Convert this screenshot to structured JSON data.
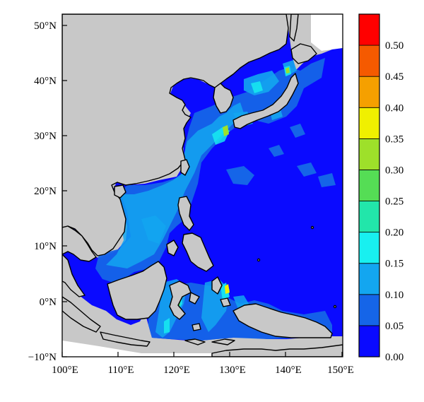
{
  "map": {
    "x_ticks": [
      "100°E",
      "110°E",
      "120°E",
      "130°E",
      "140°E",
      "150°E"
    ],
    "y_ticks": [
      "50°N",
      "40°N",
      "30°N",
      "20°N",
      "10°N",
      "0°N",
      "−10°N"
    ],
    "colors": {
      "land": "#c8c8c8",
      "ocean_base": "#1a1aff",
      "coast": "#000000"
    }
  },
  "colorbar": {
    "labels": [
      "0.00",
      "0.05",
      "0.10",
      "0.15",
      "0.20",
      "0.25",
      "0.30",
      "0.35",
      "0.40",
      "0.45",
      "0.50"
    ],
    "bins": [
      {
        "range": "0.00-0.05",
        "color": "#0a0aff"
      },
      {
        "range": "0.05-0.10",
        "color": "#1565e8"
      },
      {
        "range": "0.10-0.15",
        "color": "#13a6f0"
      },
      {
        "range": "0.15-0.20",
        "color": "#18f0f0"
      },
      {
        "range": "0.20-0.25",
        "color": "#22e6aa"
      },
      {
        "range": "0.25-0.30",
        "color": "#55dd55"
      },
      {
        "range": "0.30-0.35",
        "color": "#9ee02a"
      },
      {
        "range": "0.35-0.40",
        "color": "#f0f000"
      },
      {
        "range": "0.40-0.45",
        "color": "#f5a000"
      },
      {
        "range": "0.45-0.50",
        "color": "#f55a00"
      },
      {
        "range": "0.50-0.55",
        "color": "#ff0000"
      }
    ]
  }
}
